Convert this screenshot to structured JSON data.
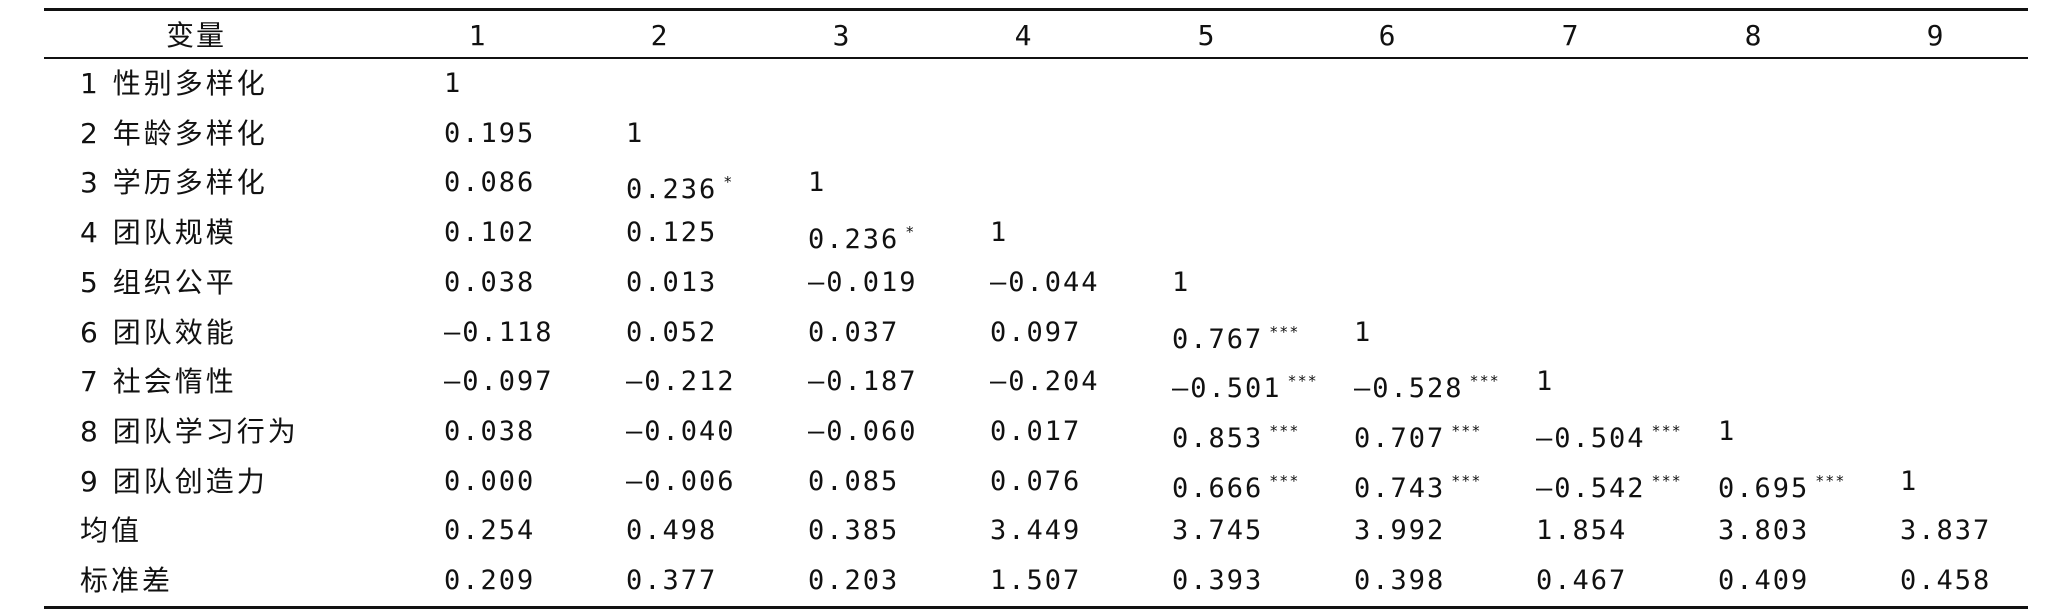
{
  "table": {
    "header": {
      "variable_label": "变量",
      "columns": [
        "1",
        "2",
        "3",
        "4",
        "5",
        "6",
        "7",
        "8",
        "9"
      ]
    },
    "rows": [
      {
        "label": "1 性别多样化",
        "cells": [
          {
            "v": "1",
            "s": ""
          },
          {
            "v": "",
            "s": ""
          },
          {
            "v": "",
            "s": ""
          },
          {
            "v": "",
            "s": ""
          },
          {
            "v": "",
            "s": ""
          },
          {
            "v": "",
            "s": ""
          },
          {
            "v": "",
            "s": ""
          },
          {
            "v": "",
            "s": ""
          },
          {
            "v": "",
            "s": ""
          }
        ]
      },
      {
        "label": "2 年龄多样化",
        "cells": [
          {
            "v": "0.195",
            "s": ""
          },
          {
            "v": "1",
            "s": ""
          },
          {
            "v": "",
            "s": ""
          },
          {
            "v": "",
            "s": ""
          },
          {
            "v": "",
            "s": ""
          },
          {
            "v": "",
            "s": ""
          },
          {
            "v": "",
            "s": ""
          },
          {
            "v": "",
            "s": ""
          },
          {
            "v": "",
            "s": ""
          }
        ]
      },
      {
        "label": "3 学历多样化",
        "cells": [
          {
            "v": "0.086",
            "s": ""
          },
          {
            "v": "0.236",
            "s": "*"
          },
          {
            "v": "1",
            "s": ""
          },
          {
            "v": "",
            "s": ""
          },
          {
            "v": "",
            "s": ""
          },
          {
            "v": "",
            "s": ""
          },
          {
            "v": "",
            "s": ""
          },
          {
            "v": "",
            "s": ""
          },
          {
            "v": "",
            "s": ""
          }
        ]
      },
      {
        "label": "4 团队规模",
        "cells": [
          {
            "v": "0.102",
            "s": ""
          },
          {
            "v": "0.125",
            "s": ""
          },
          {
            "v": "0.236",
            "s": "*"
          },
          {
            "v": "1",
            "s": ""
          },
          {
            "v": "",
            "s": ""
          },
          {
            "v": "",
            "s": ""
          },
          {
            "v": "",
            "s": ""
          },
          {
            "v": "",
            "s": ""
          },
          {
            "v": "",
            "s": ""
          }
        ]
      },
      {
        "label": "5 组织公平",
        "cells": [
          {
            "v": "0.038",
            "s": ""
          },
          {
            "v": "0.013",
            "s": ""
          },
          {
            "v": "—0.019",
            "s": ""
          },
          {
            "v": "—0.044",
            "s": ""
          },
          {
            "v": "1",
            "s": ""
          },
          {
            "v": "",
            "s": ""
          },
          {
            "v": "",
            "s": ""
          },
          {
            "v": "",
            "s": ""
          },
          {
            "v": "",
            "s": ""
          }
        ]
      },
      {
        "label": "6 团队效能",
        "cells": [
          {
            "v": "—0.118",
            "s": ""
          },
          {
            "v": "0.052",
            "s": ""
          },
          {
            "v": "0.037",
            "s": ""
          },
          {
            "v": "0.097",
            "s": ""
          },
          {
            "v": "0.767",
            "s": "***"
          },
          {
            "v": "1",
            "s": ""
          },
          {
            "v": "",
            "s": ""
          },
          {
            "v": "",
            "s": ""
          },
          {
            "v": "",
            "s": ""
          }
        ]
      },
      {
        "label": "7 社会惰性",
        "cells": [
          {
            "v": "—0.097",
            "s": ""
          },
          {
            "v": "—0.212",
            "s": ""
          },
          {
            "v": "—0.187",
            "s": ""
          },
          {
            "v": "—0.204",
            "s": ""
          },
          {
            "v": "—0.501",
            "s": "***"
          },
          {
            "v": "—0.528",
            "s": "***"
          },
          {
            "v": "1",
            "s": ""
          },
          {
            "v": "",
            "s": ""
          },
          {
            "v": "",
            "s": ""
          }
        ]
      },
      {
        "label": "8 团队学习行为",
        "cells": [
          {
            "v": "0.038",
            "s": ""
          },
          {
            "v": "—0.040",
            "s": ""
          },
          {
            "v": "—0.060",
            "s": ""
          },
          {
            "v": "0.017",
            "s": ""
          },
          {
            "v": "0.853",
            "s": "***"
          },
          {
            "v": "0.707",
            "s": "***"
          },
          {
            "v": "—0.504",
            "s": "***"
          },
          {
            "v": "1",
            "s": ""
          },
          {
            "v": "",
            "s": ""
          }
        ]
      },
      {
        "label": "9 团队创造力",
        "cells": [
          {
            "v": "0.000",
            "s": ""
          },
          {
            "v": "—0.006",
            "s": ""
          },
          {
            "v": "0.085",
            "s": ""
          },
          {
            "v": "0.076",
            "s": ""
          },
          {
            "v": "0.666",
            "s": "***"
          },
          {
            "v": "0.743",
            "s": "***"
          },
          {
            "v": "—0.542",
            "s": "***"
          },
          {
            "v": "0.695",
            "s": "***"
          },
          {
            "v": "1",
            "s": ""
          }
        ]
      },
      {
        "label": "均值",
        "cells": [
          {
            "v": "0.254",
            "s": ""
          },
          {
            "v": "0.498",
            "s": ""
          },
          {
            "v": "0.385",
            "s": ""
          },
          {
            "v": "3.449",
            "s": ""
          },
          {
            "v": "3.745",
            "s": ""
          },
          {
            "v": "3.992",
            "s": ""
          },
          {
            "v": "1.854",
            "s": ""
          },
          {
            "v": "3.803",
            "s": ""
          },
          {
            "v": "3.837",
            "s": ""
          }
        ]
      },
      {
        "label": "标准差",
        "cells": [
          {
            "v": "0.209",
            "s": ""
          },
          {
            "v": "0.377",
            "s": ""
          },
          {
            "v": "0.203",
            "s": ""
          },
          {
            "v": "1.507",
            "s": ""
          },
          {
            "v": "0.393",
            "s": ""
          },
          {
            "v": "0.398",
            "s": ""
          },
          {
            "v": "0.467",
            "s": ""
          },
          {
            "v": "0.409",
            "s": ""
          },
          {
            "v": "0.458",
            "s": ""
          }
        ]
      }
    ]
  }
}
